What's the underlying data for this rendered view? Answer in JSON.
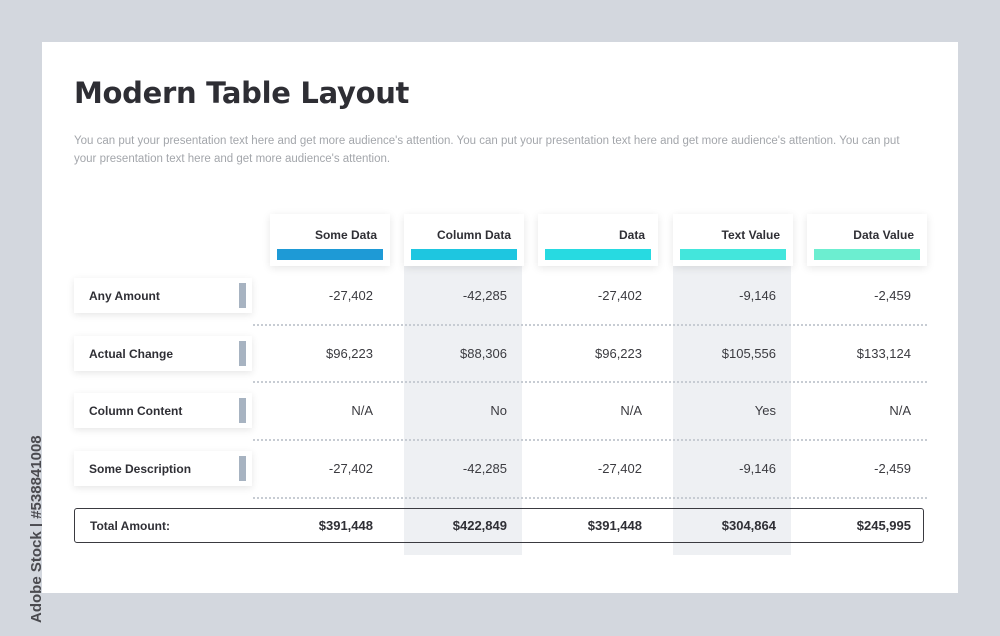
{
  "title": "Modern Table Layout",
  "subtitle": "You can put your presentation text here and get more audience's attention. You can put your presentation text here and get more audience's attention. You can put your presentation text here and get more audience's attention.",
  "columns": [
    {
      "label": "Some Data",
      "color": "#1e9ad6"
    },
    {
      "label": "Column Data",
      "color": "#1ec6e0"
    },
    {
      "label": "Data",
      "color": "#27dae1"
    },
    {
      "label": "Text Value",
      "color": "#43e6dc"
    },
    {
      "label": "Data Value",
      "color": "#6ceed0"
    }
  ],
  "rows": [
    {
      "label": "Any Amount",
      "values": [
        "-27,402",
        "-42,285",
        "-27,402",
        "-9,146",
        "-2,459"
      ]
    },
    {
      "label": "Actual Change",
      "values": [
        "$96,223",
        "$88,306",
        "$96,223",
        "$105,556",
        "$133,124"
      ]
    },
    {
      "label": "Column Content",
      "values": [
        "N/A",
        "No",
        "N/A",
        "Yes",
        "N/A"
      ]
    },
    {
      "label": "Some Description",
      "values": [
        "-27,402",
        "-42,285",
        "-27,402",
        "-9,146",
        "-2,459"
      ]
    }
  ],
  "total": {
    "label": "Total Amount:",
    "values": [
      "$391,448",
      "$422,849",
      "$391,448",
      "$304,864",
      "$245,995"
    ]
  },
  "watermark": "Adobe Stock | #538841008"
}
